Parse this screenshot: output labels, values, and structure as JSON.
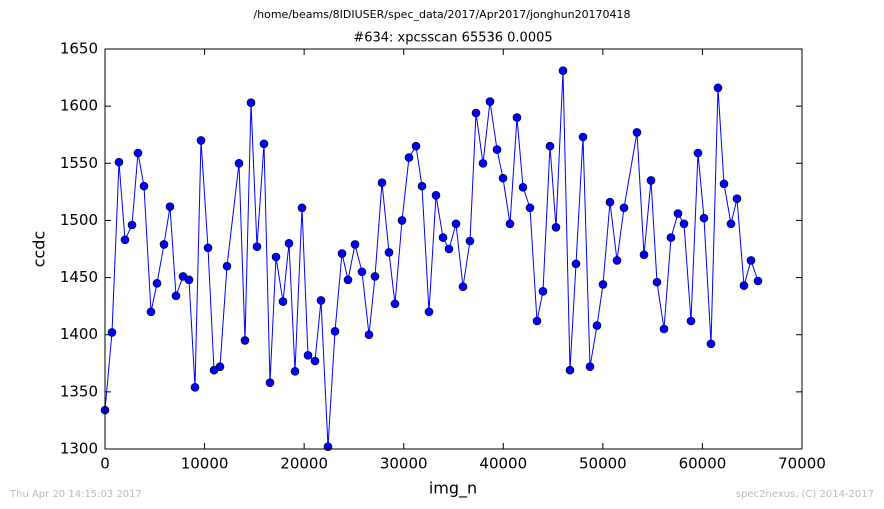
{
  "chart_data": {
    "type": "line",
    "suptitle": "/home/beams/8IDIUSER/spec_data/2017/Apr2017/jonghun20170418",
    "title": "#634: xpcsscan 65536 0.0005",
    "x_label": "img_n",
    "y_label": "ccdc",
    "footer_left": "Thu Apr 20 14:15:03 2017",
    "footer_right": "spec2nexus, (C) 2014-2017",
    "x": [
      0,
      703,
      1406,
      2009,
      2712,
      3314,
      3917,
      4620,
      5222,
      5925,
      6528,
      7131,
      7834,
      8436,
      9039,
      9641,
      10344,
      10947,
      11549,
      12252,
      13457,
      14060,
      14663,
      15265,
      15968,
      16571,
      17174,
      17877,
      18479,
      19082,
      19785,
      20387,
      21090,
      21693,
      22396,
      23099,
      23802,
      24404,
      25108,
      25811,
      26514,
      27116,
      27819,
      28522,
      29125,
      29828,
      30531,
      31234,
      31836,
      32539,
      33242,
      33945,
      34548,
      35251,
      35954,
      36657,
      37260,
      37963,
      38666,
      39369,
      39971,
      40674,
      41377,
      41980,
      42683,
      43386,
      43988,
      44691,
      45294,
      45997,
      46700,
      47303,
      48006,
      48709,
      49412,
      50014,
      50717,
      51420,
      52123,
      53429,
      54132,
      54835,
      55437,
      56140,
      56843,
      57546,
      58149,
      58852,
      59555,
      60157,
      60860,
      61563,
      62166,
      62869,
      63471,
      64174,
      64877,
      65580
    ],
    "series": [
      {
        "name": "ccdc",
        "color": "#0000ff",
        "values": [
          1334,
          1402,
          1551,
          1483,
          1496,
          1559,
          1530,
          1420,
          1445,
          1479,
          1512,
          1434,
          1451,
          1448,
          1354,
          1570,
          1476,
          1369,
          1372,
          1460,
          1550,
          1395,
          1603,
          1477,
          1567,
          1358,
          1468,
          1429,
          1480,
          1368,
          1511,
          1382,
          1377,
          1430,
          1302,
          1403,
          1471,
          1448,
          1479,
          1455,
          1400,
          1451,
          1533,
          1472,
          1427,
          1500,
          1555,
          1565,
          1530,
          1420,
          1522,
          1485,
          1475,
          1497,
          1442,
          1482,
          1594,
          1550,
          1604,
          1562,
          1537,
          1497,
          1590,
          1529,
          1511,
          1412,
          1438,
          1565,
          1494,
          1631,
          1369,
          1462,
          1573,
          1372,
          1408,
          1444,
          1516,
          1465,
          1511,
          1577,
          1470,
          1535,
          1446,
          1405,
          1485,
          1506,
          1497,
          1412,
          1559,
          1502,
          1392,
          1616,
          1532,
          1497,
          1519,
          1443,
          1465,
          1447
        ]
      }
    ],
    "xlim": [
      0,
      70000
    ],
    "xticks": [
      0,
      10000,
      20000,
      30000,
      40000,
      50000,
      60000,
      70000
    ],
    "ylim": [
      1300,
      1650
    ],
    "yticks": [
      1300,
      1350,
      1400,
      1450,
      1500,
      1550,
      1600,
      1650
    ]
  }
}
